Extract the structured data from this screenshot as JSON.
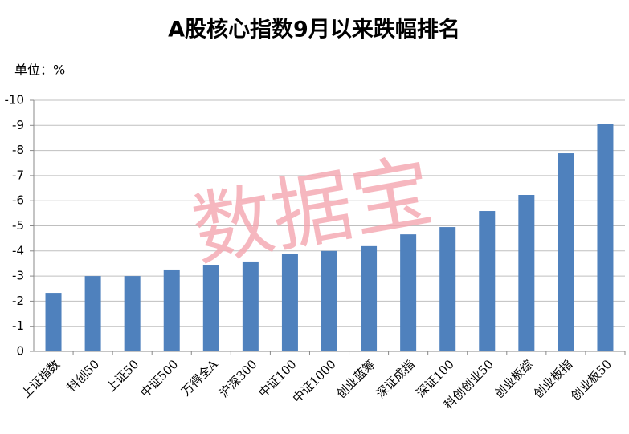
{
  "chart_data": {
    "type": "bar",
    "title": "A股核心指数9月以来跌幅排名",
    "unit_label": "单位：%",
    "watermark": "数据宝",
    "categories": [
      "上证指数",
      "科创50",
      "上证50",
      "中证500",
      "万得全A",
      "沪深300",
      "中证100",
      "中证1000",
      "创业蓝筹",
      "深证成指",
      "深证100",
      "科创创业50",
      "创业板综",
      "创业板指",
      "创业板50"
    ],
    "values": [
      -2.33,
      -3.0,
      -3.0,
      -3.26,
      -3.45,
      -3.58,
      -3.87,
      -4.0,
      -4.19,
      -4.66,
      -4.95,
      -5.59,
      -6.23,
      -7.89,
      -9.07
    ],
    "color": "#4f81bd",
    "ylim": [
      0,
      -10
    ],
    "yticks": [
      0,
      -1,
      -2,
      -3,
      -4,
      -5,
      -6,
      -7,
      -8,
      -9,
      -10
    ],
    "grid": true
  }
}
